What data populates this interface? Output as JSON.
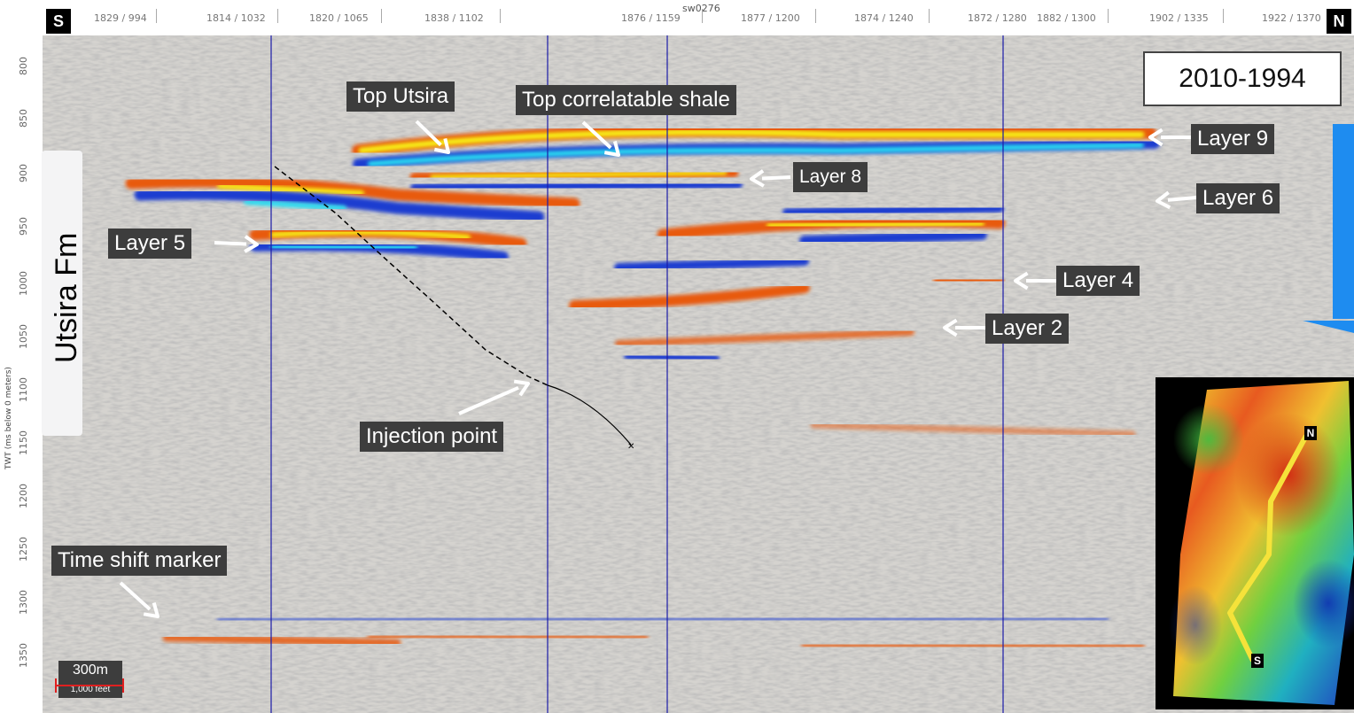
{
  "section_id": "sw0276",
  "end_labels": {
    "south": "S",
    "north": "N"
  },
  "top_ticks": [
    "1829 / 994",
    "1814 / 1032",
    "1820 / 1065",
    "1838 / 1102",
    "1876 / 1159",
    "1877 / 1200",
    "1874 / 1240",
    "1872 / 1280",
    "1882 / 1300",
    "1902 / 1335",
    "1922 / 1370"
  ],
  "y_axis": {
    "title": "TWT (ms below 0 meters)",
    "ticks": [
      "800",
      "850",
      "900",
      "950",
      "1000",
      "1050",
      "1100",
      "1150",
      "1200",
      "1250",
      "1300",
      "1350"
    ]
  },
  "title": "2010-1994",
  "formation": "Utsira Fm",
  "annotations": {
    "top_utsira": "Top Utsira",
    "top_shale": "Top correlatable shale",
    "layer9": "Layer 9",
    "layer8": "Layer 8",
    "layer6": "Layer 6",
    "layer5": "Layer 5",
    "layer4": "Layer 4",
    "layer2": "Layer 2",
    "injection": "Injection point",
    "time_shift": "Time shift marker"
  },
  "scale_bar": {
    "main": "300m",
    "sub": "1,000 feet",
    "color": "#e02020"
  },
  "map_inset": {
    "north": "N",
    "south": "S",
    "line_color": "#f5e23a"
  },
  "colors": {
    "positive_strong": "#f7ee17",
    "positive": "#e85a10",
    "negative_strong": "#2be0f2",
    "negative": "#1a3cd0",
    "well_line": "#1a1aa8",
    "background": "#d5d3cf"
  }
}
